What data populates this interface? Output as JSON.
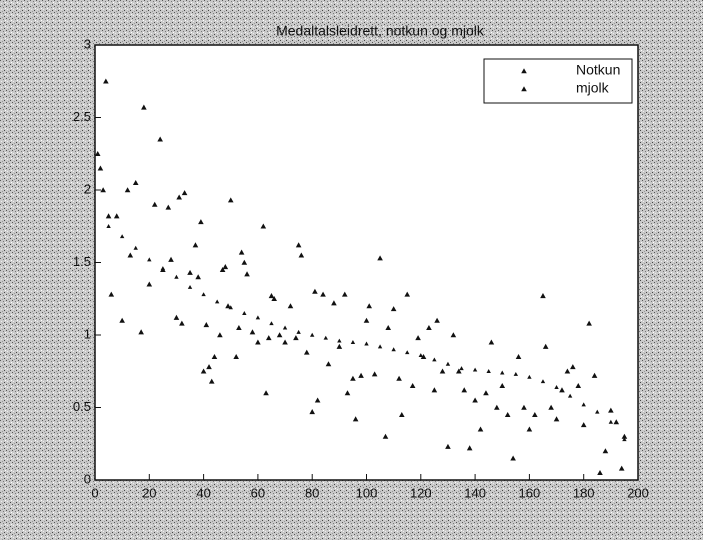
{
  "chart_data": {
    "type": "scatter",
    "title": "Medaltalsleidrett, notkun og mjolk",
    "xlim": [
      0,
      200
    ],
    "xticks": [
      0,
      20,
      40,
      60,
      80,
      100,
      120,
      140,
      160,
      180,
      200
    ],
    "ylim": [
      0,
      3
    ],
    "yticks": [
      0,
      0.5,
      1,
      1.5,
      2,
      2.5,
      3
    ],
    "grid": false,
    "legend": "upper right",
    "series": [
      {
        "name": "Notkun",
        "color": "#111111",
        "x": [
          5,
          10,
          15,
          20,
          25,
          30,
          35,
          40,
          45,
          50,
          55,
          60,
          65,
          70,
          75,
          80,
          85,
          90,
          95,
          100,
          105,
          110,
          115,
          120,
          125,
          130,
          135,
          140,
          145,
          150,
          155,
          160,
          165,
          170,
          175,
          180,
          185,
          190,
          195
        ],
        "values": [
          1.75,
          1.68,
          1.6,
          1.52,
          1.46,
          1.4,
          1.33,
          1.28,
          1.23,
          1.19,
          1.15,
          1.12,
          1.08,
          1.05,
          1.02,
          1.0,
          0.98,
          0.96,
          0.95,
          0.94,
          0.92,
          0.9,
          0.88,
          0.86,
          0.83,
          0.8,
          0.77,
          0.76,
          0.75,
          0.74,
          0.73,
          0.71,
          0.68,
          0.64,
          0.58,
          0.52,
          0.47,
          0.4,
          0.28
        ]
      },
      {
        "name": "mjolk",
        "color": "#111111",
        "x": [
          1,
          2,
          3,
          4,
          5,
          6,
          8,
          10,
          12,
          13,
          15,
          17,
          18,
          20,
          22,
          24,
          25,
          27,
          28,
          30,
          31,
          32,
          33,
          35,
          37,
          38,
          39,
          40,
          41,
          42,
          43,
          44,
          46,
          47,
          48,
          49,
          50,
          52,
          53,
          54,
          55,
          56,
          58,
          60,
          62,
          63,
          64,
          65,
          66,
          68,
          70,
          72,
          74,
          75,
          76,
          78,
          80,
          81,
          82,
          84,
          86,
          88,
          90,
          92,
          93,
          95,
          96,
          98,
          100,
          101,
          103,
          105,
          107,
          108,
          110,
          112,
          113,
          115,
          117,
          119,
          121,
          123,
          125,
          126,
          128,
          130,
          132,
          134,
          136,
          138,
          140,
          142,
          144,
          146,
          148,
          150,
          152,
          154,
          156,
          158,
          160,
          162,
          165,
          166,
          168,
          170,
          172,
          174,
          176,
          178,
          180,
          182,
          184,
          186,
          188,
          190,
          192,
          194,
          195
        ],
        "values": [
          2.25,
          2.15,
          2.0,
          2.75,
          1.82,
          1.28,
          1.82,
          1.1,
          2.0,
          1.55,
          2.05,
          1.02,
          2.57,
          1.35,
          1.9,
          2.35,
          1.45,
          1.88,
          1.52,
          1.12,
          1.95,
          1.08,
          1.98,
          1.43,
          1.62,
          1.4,
          1.78,
          0.75,
          1.07,
          0.78,
          0.68,
          0.85,
          1.0,
          1.45,
          1.47,
          1.2,
          1.93,
          0.85,
          1.05,
          1.57,
          1.5,
          1.42,
          1.02,
          0.95,
          1.75,
          0.6,
          0.98,
          1.27,
          1.25,
          1.0,
          0.95,
          1.2,
          0.98,
          1.62,
          1.55,
          0.88,
          0.47,
          1.3,
          0.55,
          1.28,
          0.8,
          1.22,
          0.92,
          1.28,
          0.6,
          0.7,
          0.42,
          0.72,
          1.1,
          1.2,
          0.73,
          1.53,
          0.3,
          1.05,
          1.18,
          0.7,
          0.45,
          1.28,
          0.65,
          0.98,
          0.85,
          1.05,
          0.62,
          1.1,
          0.75,
          0.23,
          1.0,
          0.75,
          0.62,
          0.22,
          0.55,
          0.35,
          0.6,
          0.95,
          0.5,
          0.65,
          0.45,
          0.15,
          0.85,
          0.5,
          0.35,
          0.45,
          1.27,
          0.92,
          0.5,
          0.42,
          0.62,
          0.75,
          0.78,
          0.65,
          0.38,
          1.08,
          0.72,
          0.05,
          0.2,
          0.48,
          0.4,
          0.08,
          0.3
        ]
      }
    ]
  }
}
